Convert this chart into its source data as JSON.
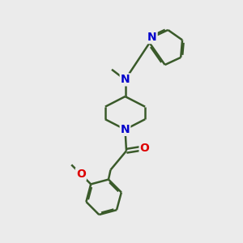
{
  "background_color": "#ebebeb",
  "bond_color": "#3a5a2a",
  "n_color": "#0000cc",
  "o_color": "#dd0000",
  "bond_width": 1.8,
  "figsize": [
    3.0,
    3.0
  ],
  "dpi": 100,
  "xlim": [
    0,
    10
  ],
  "ylim": [
    0,
    10
  ]
}
